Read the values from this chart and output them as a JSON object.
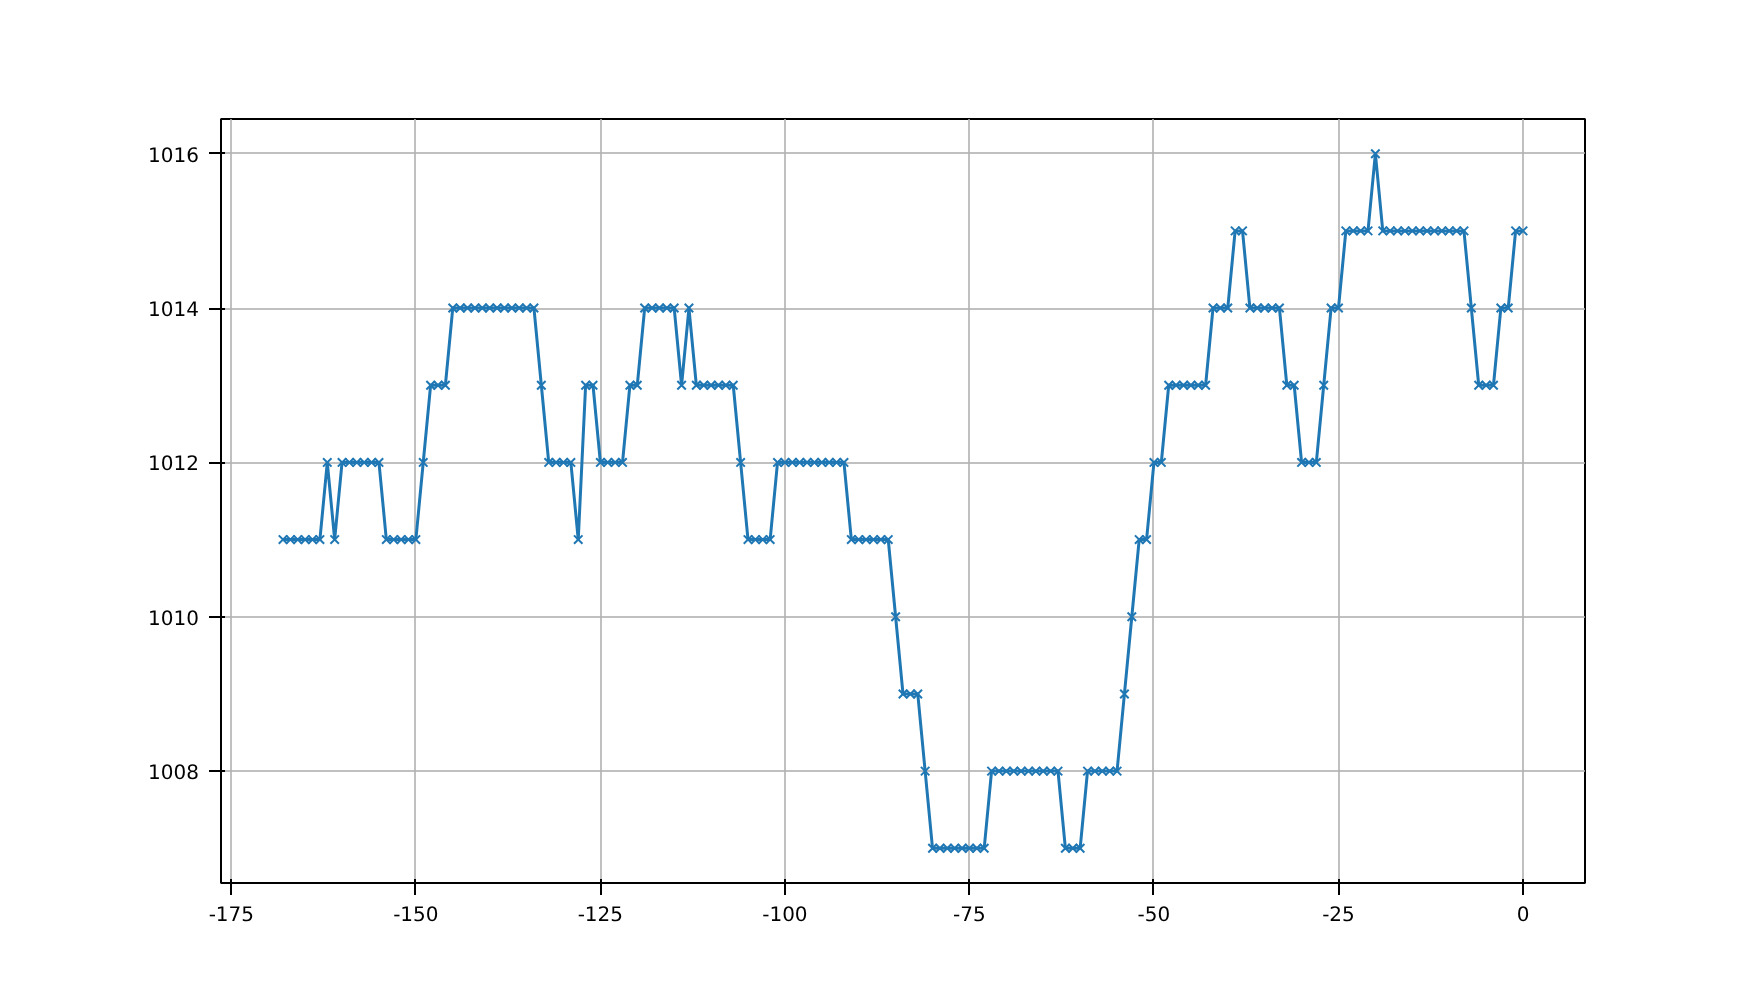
{
  "chart_data": {
    "type": "line",
    "x": [
      -168,
      -167,
      -166,
      -165,
      -164,
      -163,
      -162,
      -161,
      -160,
      -159,
      -158,
      -157,
      -156,
      -155,
      -154,
      -153,
      -152,
      -151,
      -150,
      -149,
      -148,
      -147,
      -146,
      -145,
      -144,
      -143,
      -142,
      -141,
      -140,
      -139,
      -138,
      -137,
      -136,
      -135,
      -134,
      -133,
      -132,
      -131,
      -130,
      -129,
      -128,
      -127,
      -126,
      -125,
      -124,
      -123,
      -122,
      -121,
      -120,
      -119,
      -118,
      -117,
      -116,
      -115,
      -114,
      -113,
      -112,
      -111,
      -110,
      -109,
      -108,
      -107,
      -106,
      -105,
      -104,
      -103,
      -102,
      -101,
      -100,
      -99,
      -98,
      -97,
      -96,
      -95,
      -94,
      -93,
      -92,
      -91,
      -90,
      -89,
      -88,
      -87,
      -86,
      -85,
      -84,
      -83,
      -82,
      -81,
      -80,
      -79,
      -78,
      -77,
      -76,
      -75,
      -74,
      -73,
      -72,
      -71,
      -70,
      -69,
      -68,
      -67,
      -66,
      -65,
      -64,
      -63,
      -62,
      -61,
      -60,
      -59,
      -58,
      -57,
      -56,
      -55,
      -54,
      -53,
      -52,
      -51,
      -50,
      -49,
      -48,
      -47,
      -46,
      -45,
      -44,
      -43,
      -42,
      -41,
      -40,
      -39,
      -38,
      -37,
      -36,
      -35,
      -34,
      -33,
      -32,
      -31,
      -30,
      -29,
      -28,
      -27,
      -26,
      -25,
      -24,
      -23,
      -22,
      -21,
      -20,
      -19,
      -18,
      -17,
      -16,
      -15,
      -14,
      -13,
      -12,
      -11,
      -10,
      -9,
      -8,
      -7,
      -6,
      -5,
      -4,
      -3,
      -2,
      -1,
      0
    ],
    "series": [
      {
        "color": "#1f77b4",
        "values": [
          1011,
          1011,
          1011,
          1011,
          1011,
          1011,
          1012,
          1011,
          1012,
          1012,
          1012,
          1012,
          1012,
          1012,
          1011,
          1011,
          1011,
          1011,
          1011,
          1012,
          1013,
          1013,
          1013,
          1014,
          1014,
          1014,
          1014,
          1014,
          1014,
          1014,
          1014,
          1014,
          1014,
          1014,
          1014,
          1013,
          1012,
          1012,
          1012,
          1012,
          1011,
          1013,
          1013,
          1012,
          1012,
          1012,
          1012,
          1013,
          1013,
          1014,
          1014,
          1014,
          1014,
          1014,
          1013,
          1014,
          1013,
          1013,
          1013,
          1013,
          1013,
          1013,
          1012,
          1011,
          1011,
          1011,
          1011,
          1012,
          1012,
          1012,
          1012,
          1012,
          1012,
          1012,
          1012,
          1012,
          1012,
          1011,
          1011,
          1011,
          1011,
          1011,
          1011,
          1010,
          1009,
          1009,
          1009,
          1008,
          1007,
          1007,
          1007,
          1007,
          1007,
          1007,
          1007,
          1007,
          1008,
          1008,
          1008,
          1008,
          1008,
          1008,
          1008,
          1008,
          1008,
          1008,
          1007,
          1007,
          1007,
          1008,
          1008,
          1008,
          1008,
          1008,
          1009,
          1010,
          1011,
          1011,
          1012,
          1012,
          1013,
          1013,
          1013,
          1013,
          1013,
          1013,
          1014,
          1014,
          1014,
          1015,
          1015,
          1014,
          1014,
          1014,
          1014,
          1014,
          1013,
          1013,
          1012,
          1012,
          1012,
          1013,
          1014,
          1014,
          1015,
          1015,
          1015,
          1015,
          1016,
          1015,
          1015,
          1015,
          1015,
          1015,
          1015,
          1015,
          1015,
          1015,
          1015,
          1015,
          1015,
          1014,
          1013,
          1013,
          1013,
          1014,
          1014,
          1015,
          1015
        ]
      }
    ],
    "xlim": [
      -176.4,
      8.4
    ],
    "ylim": [
      1006.55,
      1016.45
    ],
    "xticks": [
      -175,
      -150,
      -125,
      -100,
      -75,
      -50,
      -25,
      0
    ],
    "yticks": [
      1008,
      1010,
      1012,
      1014,
      1016
    ],
    "grid": true,
    "marker": "cross",
    "line_style": "solid"
  }
}
